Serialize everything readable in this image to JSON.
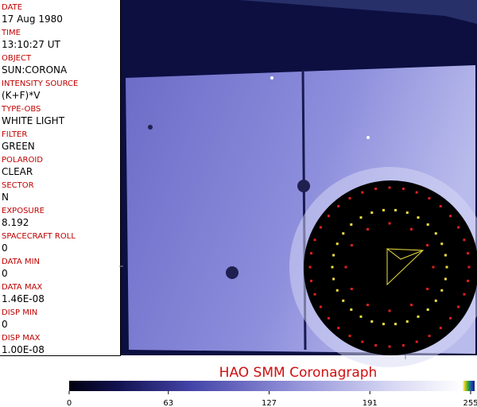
{
  "fields": [
    {
      "label": "DATE",
      "value": "17 Aug 1980"
    },
    {
      "label": "TIME",
      "value": "13:10:27 UT"
    },
    {
      "label": "OBJECT",
      "value": "SUN:CORONA"
    },
    {
      "label": "INTENSITY SOURCE",
      "value": "(K+F)*V"
    },
    {
      "label": "TYPE-OBS",
      "value": "WHITE LIGHT"
    },
    {
      "label": "FILTER",
      "value": "GREEN"
    },
    {
      "label": "POLAROID",
      "value": "CLEAR"
    },
    {
      "label": "SECTOR",
      "value": "N"
    },
    {
      "label": "EXPOSURE",
      "value": "8.192"
    },
    {
      "label": "SPACECRAFT ROLL",
      "value": "0"
    },
    {
      "label": "DATA MIN",
      "value": "0"
    },
    {
      "label": "DATA MAX",
      "value": "1.46E-08"
    },
    {
      "label": "DISP MIN",
      "value": "0"
    },
    {
      "label": "DISP MAX",
      "value": "1.00E-08"
    }
  ],
  "title": "HAO  SMM Coronagraph",
  "colorbar": {
    "lim": [
      0,
      255
    ],
    "ticks": [
      0,
      63,
      127,
      191,
      255
    ]
  }
}
